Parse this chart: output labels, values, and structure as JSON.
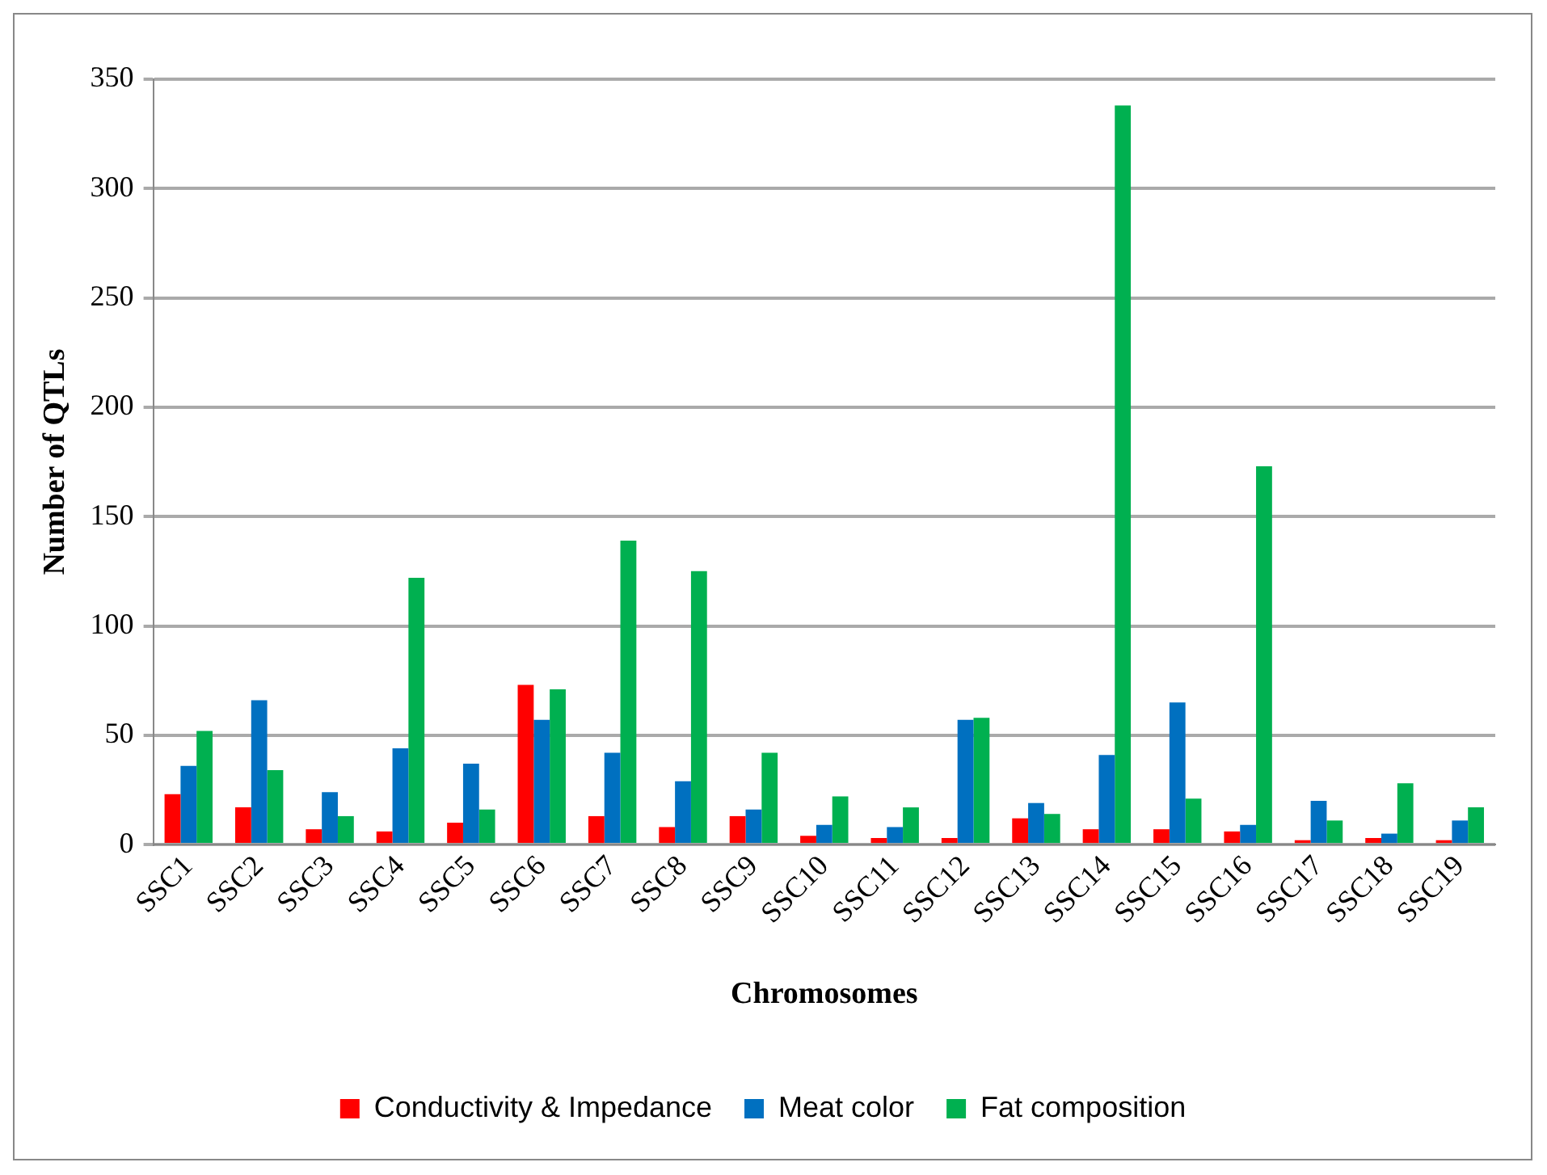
{
  "chart_data": {
    "type": "bar",
    "xlabel": "Chromosomes",
    "ylabel": "Number of QTLs",
    "categories": [
      "SSC1",
      "SSC2",
      "SSC3",
      "SSC4",
      "SSC5",
      "SSC6",
      "SSC7",
      "SSC8",
      "SSC9",
      "SSC10",
      "SSC11",
      "SSC12",
      "SSC13",
      "SSC14",
      "SSC15",
      "SSC16",
      "SSC17",
      "SSC18",
      "SSC19"
    ],
    "series": [
      {
        "name": "Conductivity & Impedance",
        "color": "#ff0000",
        "values": [
          23,
          17,
          7,
          6,
          10,
          73,
          13,
          8,
          13,
          4,
          3,
          3,
          12,
          7,
          7,
          6,
          2,
          3,
          2
        ]
      },
      {
        "name": "Meat color",
        "color": "#0070c0",
        "values": [
          36,
          66,
          24,
          44,
          37,
          57,
          42,
          29,
          16,
          9,
          8,
          57,
          19,
          41,
          65,
          9,
          20,
          5,
          11
        ]
      },
      {
        "name": "Fat composition",
        "color": "#00b050",
        "values": [
          52,
          34,
          13,
          122,
          16,
          71,
          139,
          125,
          42,
          22,
          17,
          58,
          14,
          338,
          21,
          173,
          11,
          28,
          17
        ]
      }
    ],
    "ylim": [
      0,
      350
    ],
    "yticks": [
      0,
      50,
      100,
      150,
      200,
      250,
      300,
      350
    ],
    "grid": "y",
    "legend": "bottom"
  }
}
